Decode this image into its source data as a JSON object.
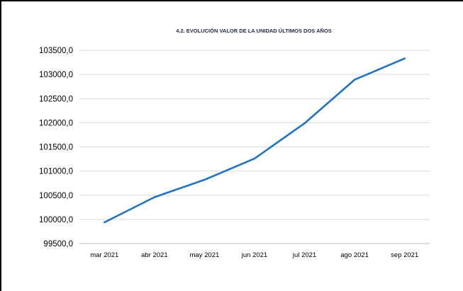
{
  "chart_data": {
    "type": "line",
    "title": "4.2. EVOLUCIÓN VALOR DE LA UNIDAD ÚLTIMOS DOS AÑOS",
    "xlabel": "",
    "ylabel": "",
    "categories": [
      "mar 2021",
      "abr 2021",
      "may 2021",
      "jun 2021",
      "jul 2021",
      "ago 2021",
      "sep 2021"
    ],
    "series": [
      {
        "values": [
          99940,
          100460,
          100820,
          101260,
          101990,
          102890,
          103330
        ]
      }
    ],
    "yticks": [
      "99500,0",
      "100000,0",
      "100500,0",
      "101000,0",
      "101500,0",
      "102000,0",
      "102500,0",
      "103000,0",
      "103500,0"
    ],
    "ylim": [
      99500,
      103500
    ],
    "grid": true,
    "legend": "none",
    "colors": {
      "line": "#1f72c4",
      "grid": "#d9d9d9",
      "title": "#1f2d4e"
    }
  }
}
